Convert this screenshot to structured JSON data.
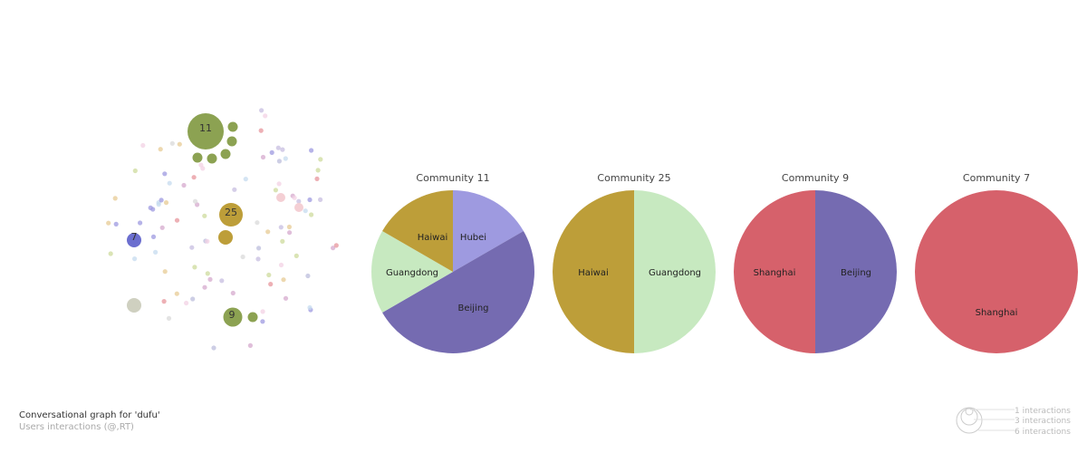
{
  "caption": {
    "title": "Conversational graph for 'dufu'",
    "subtitle": "Users interactions (@,RT)"
  },
  "colors": {
    "Beijing": "#756bb1",
    "Hubei": "#9e9ae0",
    "Guangdong": "#c7e9c0",
    "Haiwai": "#bd9e39",
    "Shanghai": "#d6616b",
    "community_11": "#8ca252",
    "community_25": "#bd9e39",
    "community_9": "#8ca252",
    "community_7": "#6b6ecf",
    "community_other": "#cfd0c0"
  },
  "graph": {
    "labeled_communities": [
      "11",
      "25",
      "9",
      "7"
    ]
  },
  "legend": {
    "items": [
      "1 interactions",
      "3 interactions",
      "6 interactions"
    ]
  },
  "chart_data": [
    {
      "type": "pie",
      "title": "Community 11",
      "slices": [
        {
          "label": "Hubei",
          "value": 1
        },
        {
          "label": "Beijing",
          "value": 3
        },
        {
          "label": "Guangdong",
          "value": 1
        },
        {
          "label": "Haiwai",
          "value": 1
        }
      ]
    },
    {
      "type": "pie",
      "title": "Community 25",
      "slices": [
        {
          "label": "Guangdong",
          "value": 1
        },
        {
          "label": "Haiwai",
          "value": 1
        }
      ]
    },
    {
      "type": "pie",
      "title": "Community 9",
      "slices": [
        {
          "label": "Beijing",
          "value": 1
        },
        {
          "label": "Shanghai",
          "value": 1
        }
      ]
    },
    {
      "type": "pie",
      "title": "Community 7",
      "slices": [
        {
          "label": "Shanghai",
          "value": 1
        }
      ]
    }
  ]
}
